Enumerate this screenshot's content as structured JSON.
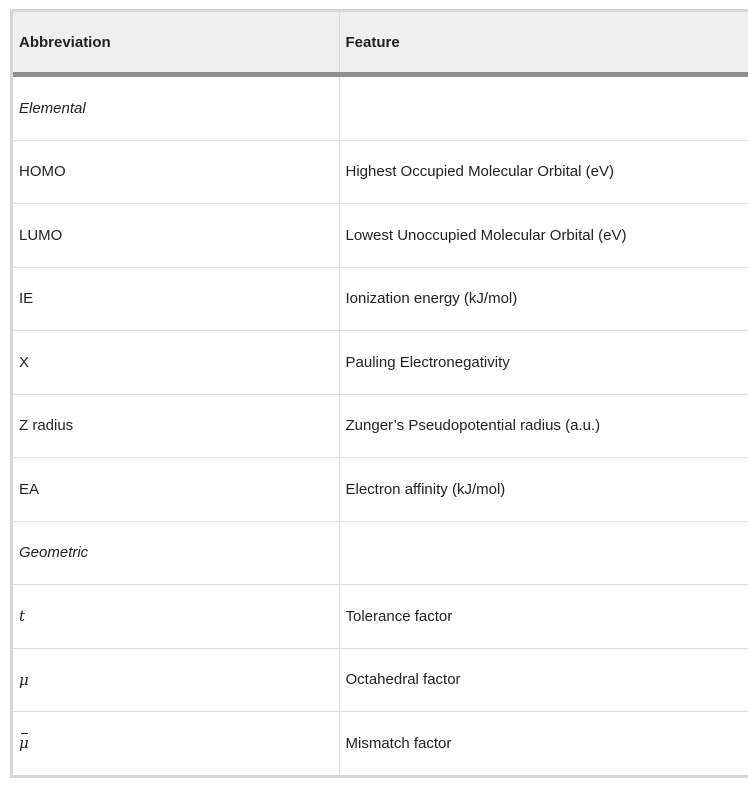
{
  "table": {
    "headers": [
      "Abbreviation",
      "Feature"
    ],
    "rows": [
      {
        "abbr": "Elemental",
        "feature": "",
        "kind": "section"
      },
      {
        "abbr": "HOMO",
        "feature": "Highest Occupied Molecular Orbital (eV)",
        "kind": "row"
      },
      {
        "abbr": "LUMO",
        "feature": "Lowest Unoccupied Molecular Orbital (eV)",
        "kind": "row"
      },
      {
        "abbr": "IE",
        "feature": "Ionization energy (kJ/mol)",
        "kind": "row"
      },
      {
        "abbr": "X",
        "feature": "Pauling Electronegativity",
        "kind": "row"
      },
      {
        "abbr": "Z radius",
        "feature": "Zunger’s Pseudopotential radius (a.u.)",
        "kind": "row"
      },
      {
        "abbr": "EA",
        "feature": "Electron affinity (kJ/mol)",
        "kind": "row"
      },
      {
        "abbr": "Geometric",
        "feature": "",
        "kind": "section"
      },
      {
        "abbr": "t",
        "feature": "Tolerance factor",
        "kind": "math"
      },
      {
        "abbr": "μ",
        "feature": "Octahedral factor",
        "kind": "math"
      },
      {
        "abbr": "μ",
        "feature": "Mismatch factor",
        "kind": "math-bar"
      }
    ]
  }
}
